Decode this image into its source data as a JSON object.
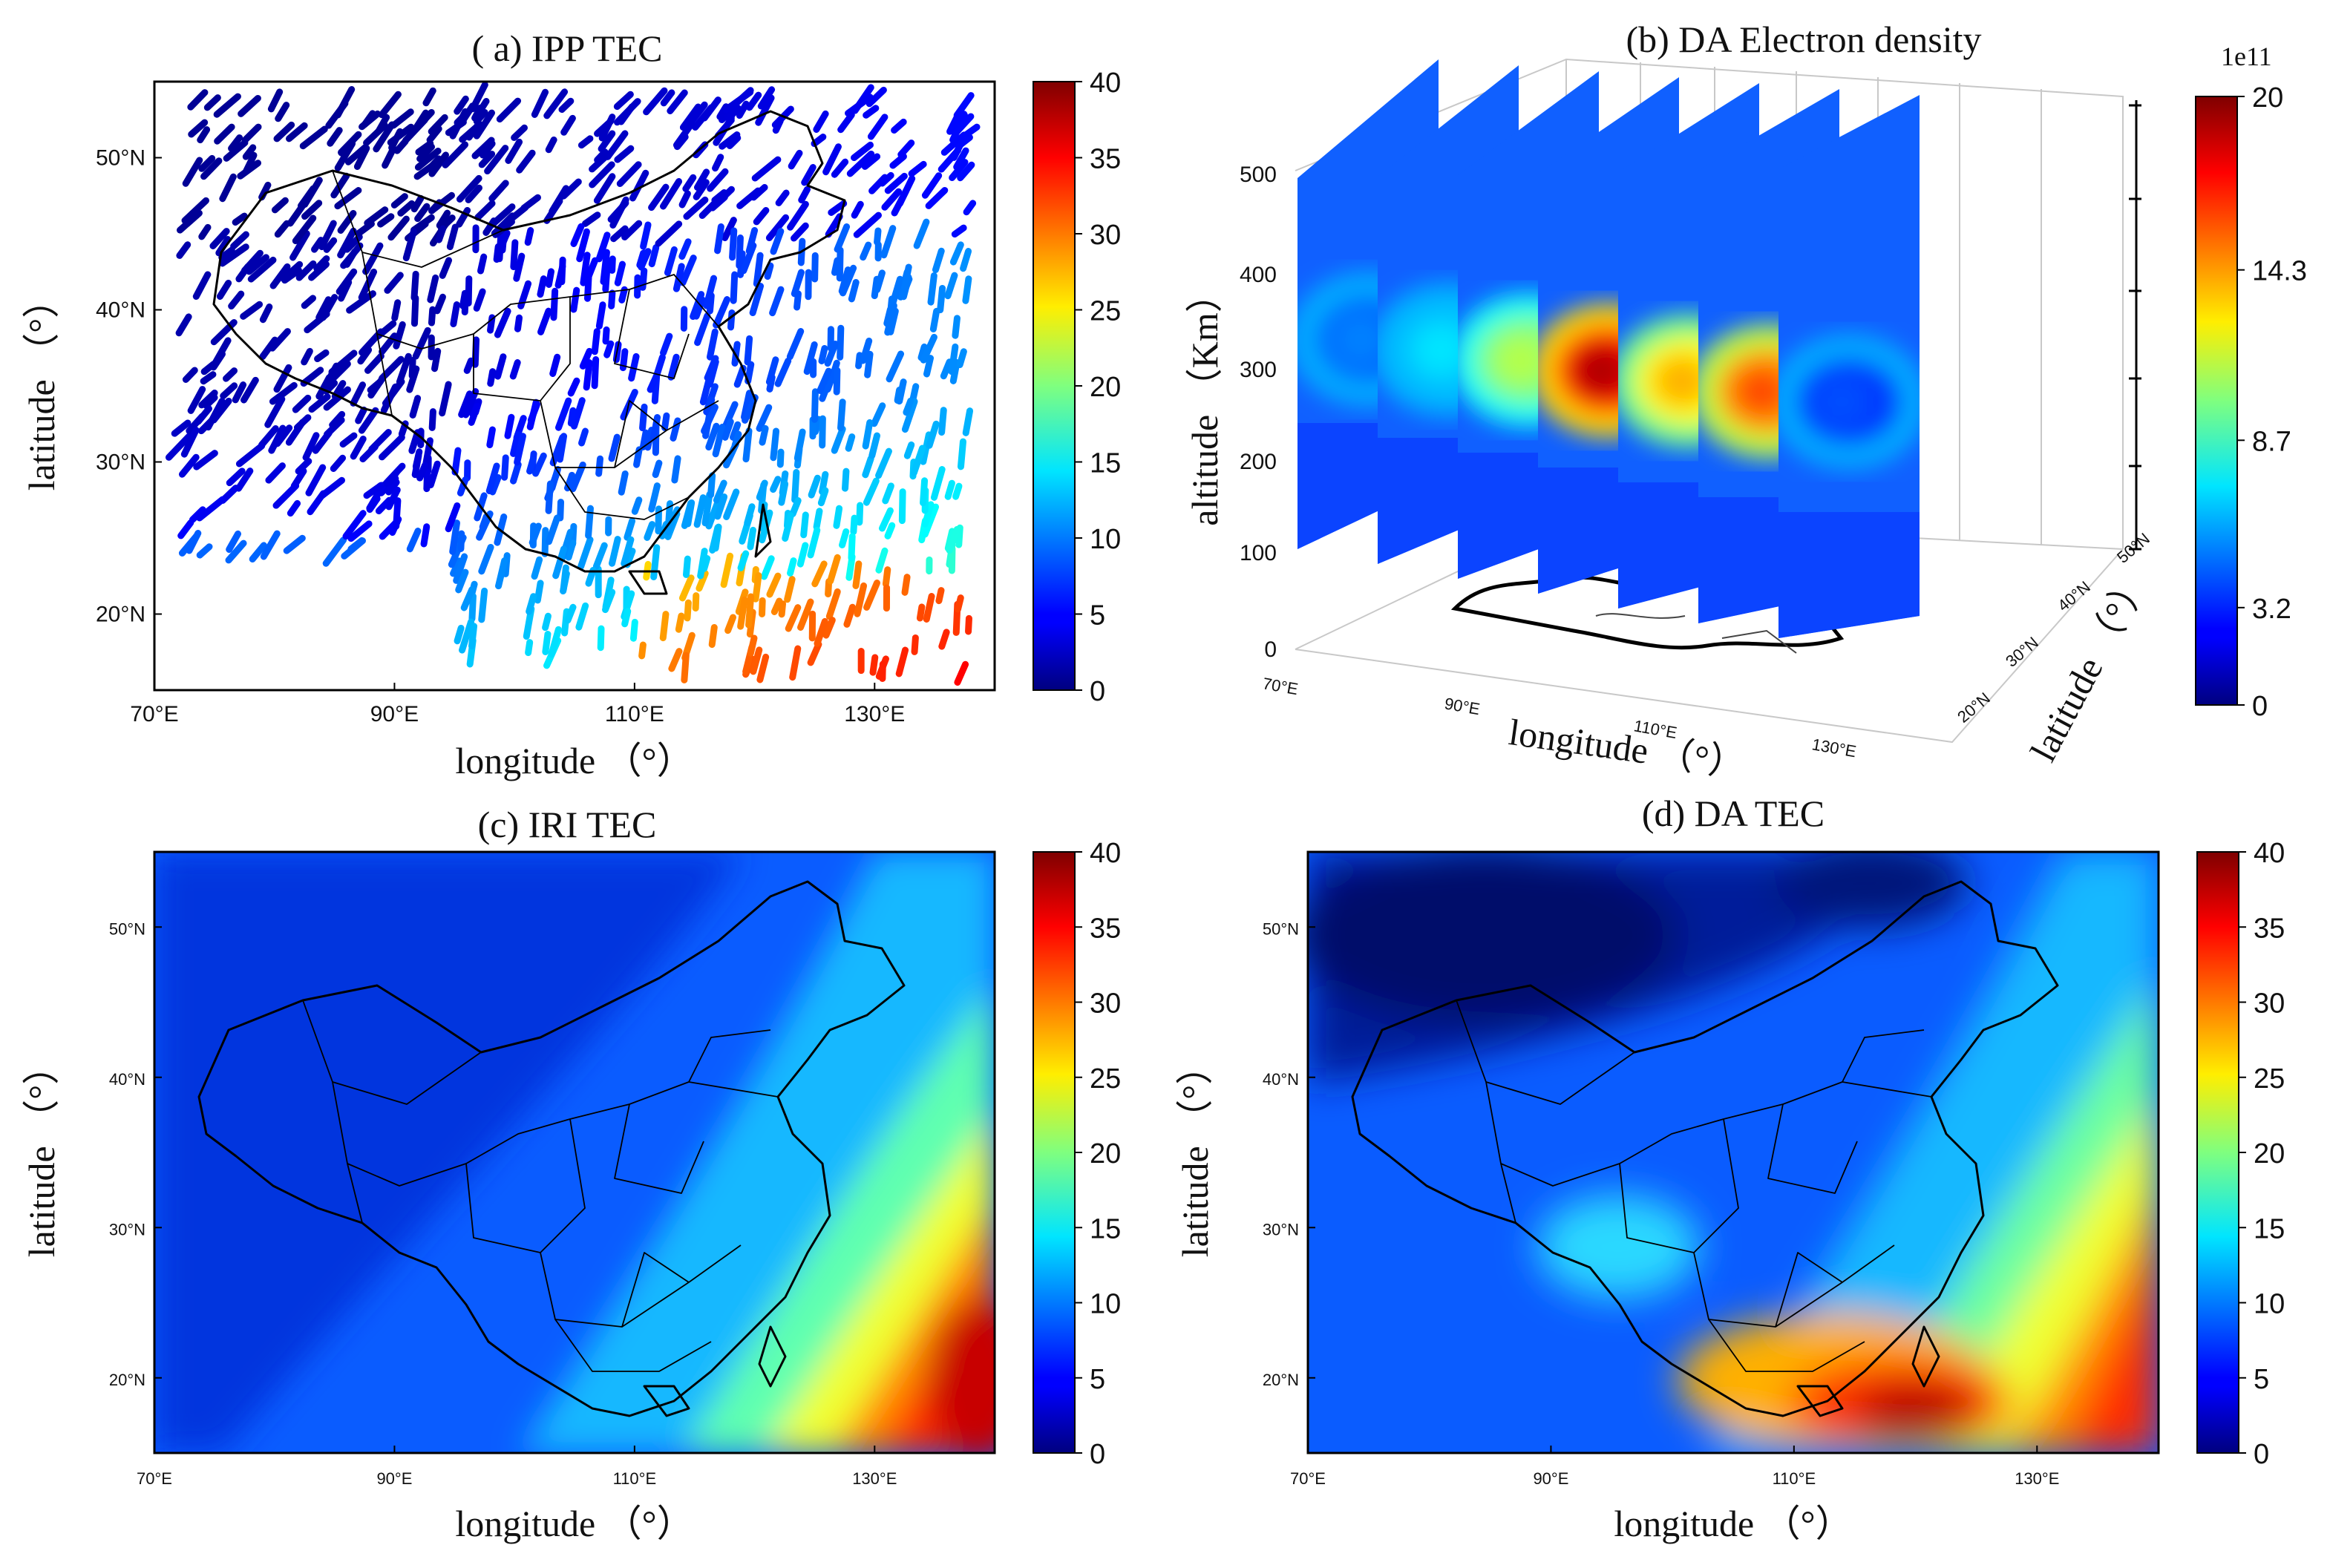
{
  "chart_data": [
    {
      "type": "scatter",
      "panel": "a",
      "title": "( a) IPP TEC",
      "xlabel": "longitude （°）",
      "ylabel": "latitude （°）",
      "xlim": [
        70,
        140
      ],
      "ylim": [
        15,
        55
      ],
      "xticks": [
        "70°E",
        "90°E",
        "110°E",
        "130°E"
      ],
      "yticks": [
        "20°N",
        "30°N",
        "40°N",
        "50°N"
      ],
      "colorbar": {
        "min": 0,
        "max": 40,
        "ticks": [
          "0",
          "5",
          "10",
          "15",
          "20",
          "25",
          "30",
          "35",
          "40"
        ]
      }
    },
    {
      "type": "heatmap",
      "panel": "b",
      "title": "(b) DA Electron density",
      "xlabel": "longitude （°）",
      "ylabel": "altitude （Km）",
      "zlabel": "latitude （°）",
      "alt_ticks": [
        "0",
        "100",
        "200",
        "300",
        "400",
        "500"
      ],
      "lon_ticks": [
        "70°E",
        "90°E",
        "110°E",
        "130°E"
      ],
      "lat_ticks": [
        "20°N",
        "30°N",
        "40°N",
        "50°N"
      ],
      "colorbar": {
        "min": 0,
        "max": 20,
        "scale_label": "1e11",
        "ticks": [
          "0",
          "3.2",
          "8.7",
          "14.3",
          "20"
        ]
      },
      "slice_peak_values": [
        5,
        7,
        11,
        19,
        14,
        16,
        4
      ]
    },
    {
      "type": "heatmap",
      "panel": "c",
      "title": "(c) IRI TEC",
      "xlabel": "longitude （°）",
      "ylabel": "latitude （°）",
      "xlim": [
        70,
        140
      ],
      "ylim": [
        15,
        55
      ],
      "xticks": [
        "70°E",
        "90°E",
        "110°E",
        "130°E"
      ],
      "yticks": [
        "20°N",
        "30°N",
        "40°N",
        "50°N"
      ],
      "colorbar": {
        "min": 0,
        "max": 40,
        "ticks": [
          "0",
          "5",
          "10",
          "15",
          "20",
          "25",
          "30",
          "35",
          "40"
        ]
      }
    },
    {
      "type": "heatmap",
      "panel": "d",
      "title": "(d) DA TEC",
      "xlabel": "longitude （°）",
      "ylabel": "latitude （°）",
      "xlim": [
        70,
        140
      ],
      "ylim": [
        15,
        55
      ],
      "xticks": [
        "70°E",
        "90°E",
        "110°E",
        "130°E"
      ],
      "yticks": [
        "20°N",
        "30°N",
        "40°N",
        "50°N"
      ],
      "colorbar": {
        "min": 0,
        "max": 40,
        "ticks": [
          "0",
          "5",
          "10",
          "15",
          "20",
          "25",
          "30",
          "35",
          "40"
        ]
      }
    }
  ],
  "colors": {
    "jet_low": "#00007f",
    "jet_mid": "#7fff7f",
    "jet_high": "#7f0000",
    "axis": "#000000"
  }
}
